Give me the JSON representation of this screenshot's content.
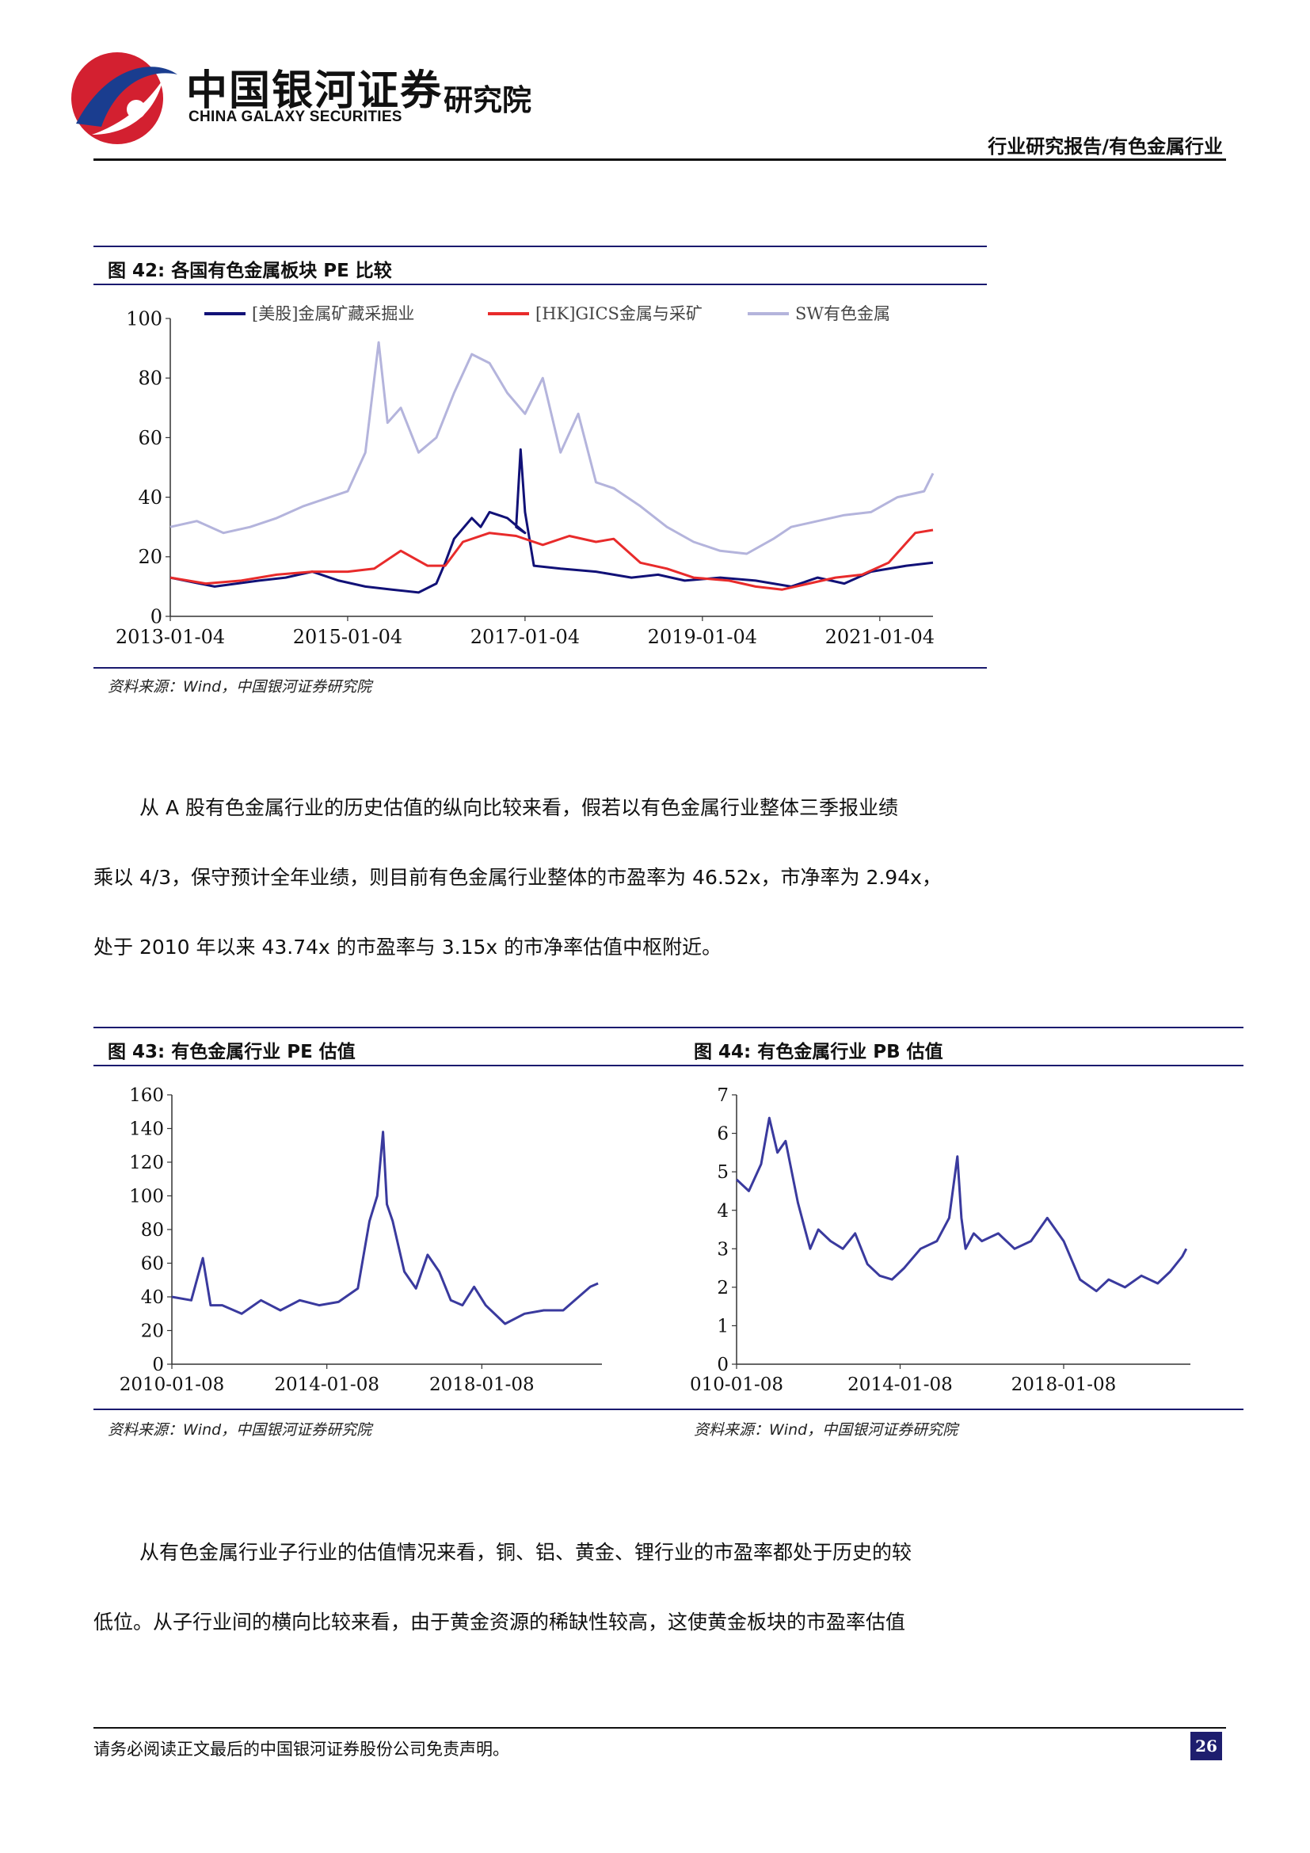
{
  "header": {
    "logo_cn": "中国银河证券",
    "logo_en": "CHINA GALAXY SECURITIES",
    "logo_institute": "研究院",
    "report_type": "行业研究报告/有色金属行业"
  },
  "figures": {
    "fig42": {
      "title": "图 42:  各国有色金属板块 PE 比较",
      "source": "资料来源：Wind，中国银河证券研究院"
    },
    "fig43": {
      "title": "图 43:  有色金属行业 PE 估值",
      "source": "资料来源：Wind，中国银河证券研究院"
    },
    "fig44": {
      "title": "图 44:  有色金属行业 PB 估值",
      "source": "资料来源：Wind，中国银河证券研究院"
    }
  },
  "paragraphs": {
    "p1_line1": "从 A 股有色金属行业的历史估值的纵向比较来看，假若以有色金属行业整体三季报业绩",
    "p1_line2": "乘以 4/3，保守预计全年业绩，则目前有色金属行业整体的市盈率为 46.52x，市净率为 2.94x，",
    "p1_line3": "处于 2010 年以来 43.74x 的市盈率与 3.15x 的市净率估值中枢附近。",
    "p2_line1": "从有色金属行业子行业的估值情况来看，铜、铝、黄金、锂行业的市盈率都处于历史的较",
    "p2_line2": "低位。从子行业间的横向比较来看，由于黄金资源的稀缺性较高，这使黄金板块的市盈率估值"
  },
  "footer": {
    "disclaimer": "请务必阅读正文最后的中国银河证券股份公司免责声明。",
    "page_number": "26"
  },
  "chart_data": [
    {
      "id": "fig42",
      "type": "line",
      "title": "",
      "ylim": [
        0,
        100
      ],
      "yticks": [
        "0",
        "20",
        "40",
        "60",
        "80",
        "100"
      ],
      "xticks": [
        "2013-01-04",
        "2015-01-04",
        "2017-01-04",
        "2019-01-04",
        "2021-01-04"
      ],
      "legend_position": "top",
      "grid": false,
      "series": [
        {
          "name": "[美股]金属矿藏采掘业",
          "color": "#111177",
          "x": [
            2013.0,
            2013.5,
            2014.0,
            2014.3,
            2014.6,
            2014.9,
            2015.2,
            2015.5,
            2015.8,
            2016.0,
            2016.1,
            2016.2,
            2016.4,
            2016.5,
            2016.6,
            2016.8,
            2017.0,
            2016.9,
            2016.95,
            2017.0,
            2017.05,
            2017.1,
            2017.4,
            2017.8,
            2018.2,
            2018.5,
            2018.8,
            2019.2,
            2019.6,
            2020.0,
            2020.3,
            2020.6,
            2020.9,
            2021.3,
            2021.6
          ],
          "y": [
            13,
            10,
            12,
            13,
            15,
            12,
            10,
            9,
            8,
            11,
            18,
            26,
            33,
            30,
            35,
            33,
            28,
            30,
            56,
            35,
            26,
            17,
            16,
            15,
            13,
            14,
            12,
            13,
            12,
            10,
            13,
            11,
            15,
            17,
            18
          ]
        },
        {
          "name": "[HK]GICS金属与采矿",
          "color": "#e82b2b",
          "x": [
            2013.0,
            2013.4,
            2013.8,
            2014.2,
            2014.6,
            2015.0,
            2015.3,
            2015.6,
            2015.9,
            2016.1,
            2016.3,
            2016.6,
            2016.9,
            2017.2,
            2017.5,
            2017.8,
            2018.0,
            2018.3,
            2018.6,
            2018.9,
            2019.3,
            2019.6,
            2019.9,
            2020.2,
            2020.5,
            2020.8,
            2021.1,
            2021.4,
            2021.6
          ],
          "y": [
            13,
            11,
            12,
            14,
            15,
            15,
            16,
            22,
            17,
            17,
            25,
            28,
            27,
            24,
            27,
            25,
            26,
            18,
            16,
            13,
            12,
            10,
            9,
            11,
            13,
            14,
            18,
            28,
            29
          ]
        },
        {
          "name": "SW有色金属",
          "color": "#b4b4dc",
          "x": [
            2013.0,
            2013.3,
            2013.6,
            2013.9,
            2014.2,
            2014.5,
            2014.8,
            2015.0,
            2015.2,
            2015.35,
            2015.45,
            2015.6,
            2015.8,
            2016.0,
            2016.2,
            2016.4,
            2016.6,
            2016.8,
            2017.0,
            2017.2,
            2017.4,
            2017.6,
            2017.8,
            2018.0,
            2018.3,
            2018.6,
            2018.9,
            2019.2,
            2019.5,
            2019.8,
            2020.0,
            2020.3,
            2020.6,
            2020.9,
            2021.2,
            2021.5,
            2021.6
          ],
          "y": [
            30,
            32,
            28,
            30,
            33,
            37,
            40,
            42,
            55,
            92,
            65,
            70,
            55,
            60,
            75,
            88,
            85,
            75,
            68,
            80,
            55,
            68,
            45,
            43,
            37,
            30,
            25,
            22,
            21,
            26,
            30,
            32,
            34,
            35,
            40,
            42,
            48
          ]
        }
      ]
    },
    {
      "id": "fig43",
      "type": "line",
      "title": "",
      "ylim": [
        0,
        160
      ],
      "yticks": [
        "0",
        "20",
        "40",
        "60",
        "80",
        "100",
        "120",
        "140",
        "160"
      ],
      "xticks": [
        "2010-01-08",
        "2014-01-08",
        "2018-01-08"
      ],
      "grid": false,
      "series": [
        {
          "name": "",
          "color": "#3a3a9e",
          "x": [
            2010.0,
            2010.5,
            2010.8,
            2011.0,
            2011.3,
            2011.8,
            2012.3,
            2012.8,
            2013.3,
            2013.8,
            2014.3,
            2014.8,
            2015.1,
            2015.3,
            2015.45,
            2015.55,
            2015.7,
            2016.0,
            2016.3,
            2016.6,
            2016.9,
            2017.2,
            2017.5,
            2017.8,
            2018.1,
            2018.6,
            2019.1,
            2019.6,
            2020.1,
            2020.5,
            2020.8,
            2021.0
          ],
          "y": [
            40,
            38,
            63,
            35,
            35,
            30,
            38,
            32,
            38,
            35,
            37,
            45,
            85,
            100,
            138,
            95,
            85,
            55,
            45,
            65,
            55,
            38,
            35,
            46,
            35,
            24,
            30,
            32,
            32,
            40,
            46,
            48
          ]
        }
      ]
    },
    {
      "id": "fig44",
      "type": "line",
      "title": "",
      "ylim": [
        0,
        7
      ],
      "yticks": [
        "0",
        "1",
        "2",
        "3",
        "4",
        "5",
        "6",
        "7"
      ],
      "xticks": [
        "010-01-08",
        "2014-01-08",
        "2018-01-08"
      ],
      "grid": false,
      "series": [
        {
          "name": "",
          "color": "#3a3a9e",
          "x": [
            2010.0,
            2010.3,
            2010.6,
            2010.8,
            2011.0,
            2011.2,
            2011.5,
            2011.8,
            2012.0,
            2012.3,
            2012.6,
            2012.9,
            2013.2,
            2013.5,
            2013.8,
            2014.1,
            2014.5,
            2014.9,
            2015.2,
            2015.4,
            2015.5,
            2015.6,
            2015.8,
            2016.0,
            2016.4,
            2016.8,
            2017.2,
            2017.6,
            2018.0,
            2018.4,
            2018.8,
            2019.1,
            2019.5,
            2019.9,
            2020.3,
            2020.6,
            2020.9,
            2021.0
          ],
          "y": [
            4.8,
            4.5,
            5.2,
            6.4,
            5.5,
            5.8,
            4.2,
            3.0,
            3.5,
            3.2,
            3.0,
            3.4,
            2.6,
            2.3,
            2.2,
            2.5,
            3.0,
            3.2,
            3.8,
            5.4,
            3.8,
            3.0,
            3.4,
            3.2,
            3.4,
            3.0,
            3.2,
            3.8,
            3.2,
            2.2,
            1.9,
            2.2,
            2.0,
            2.3,
            2.1,
            2.4,
            2.8,
            3.0
          ]
        }
      ]
    }
  ]
}
